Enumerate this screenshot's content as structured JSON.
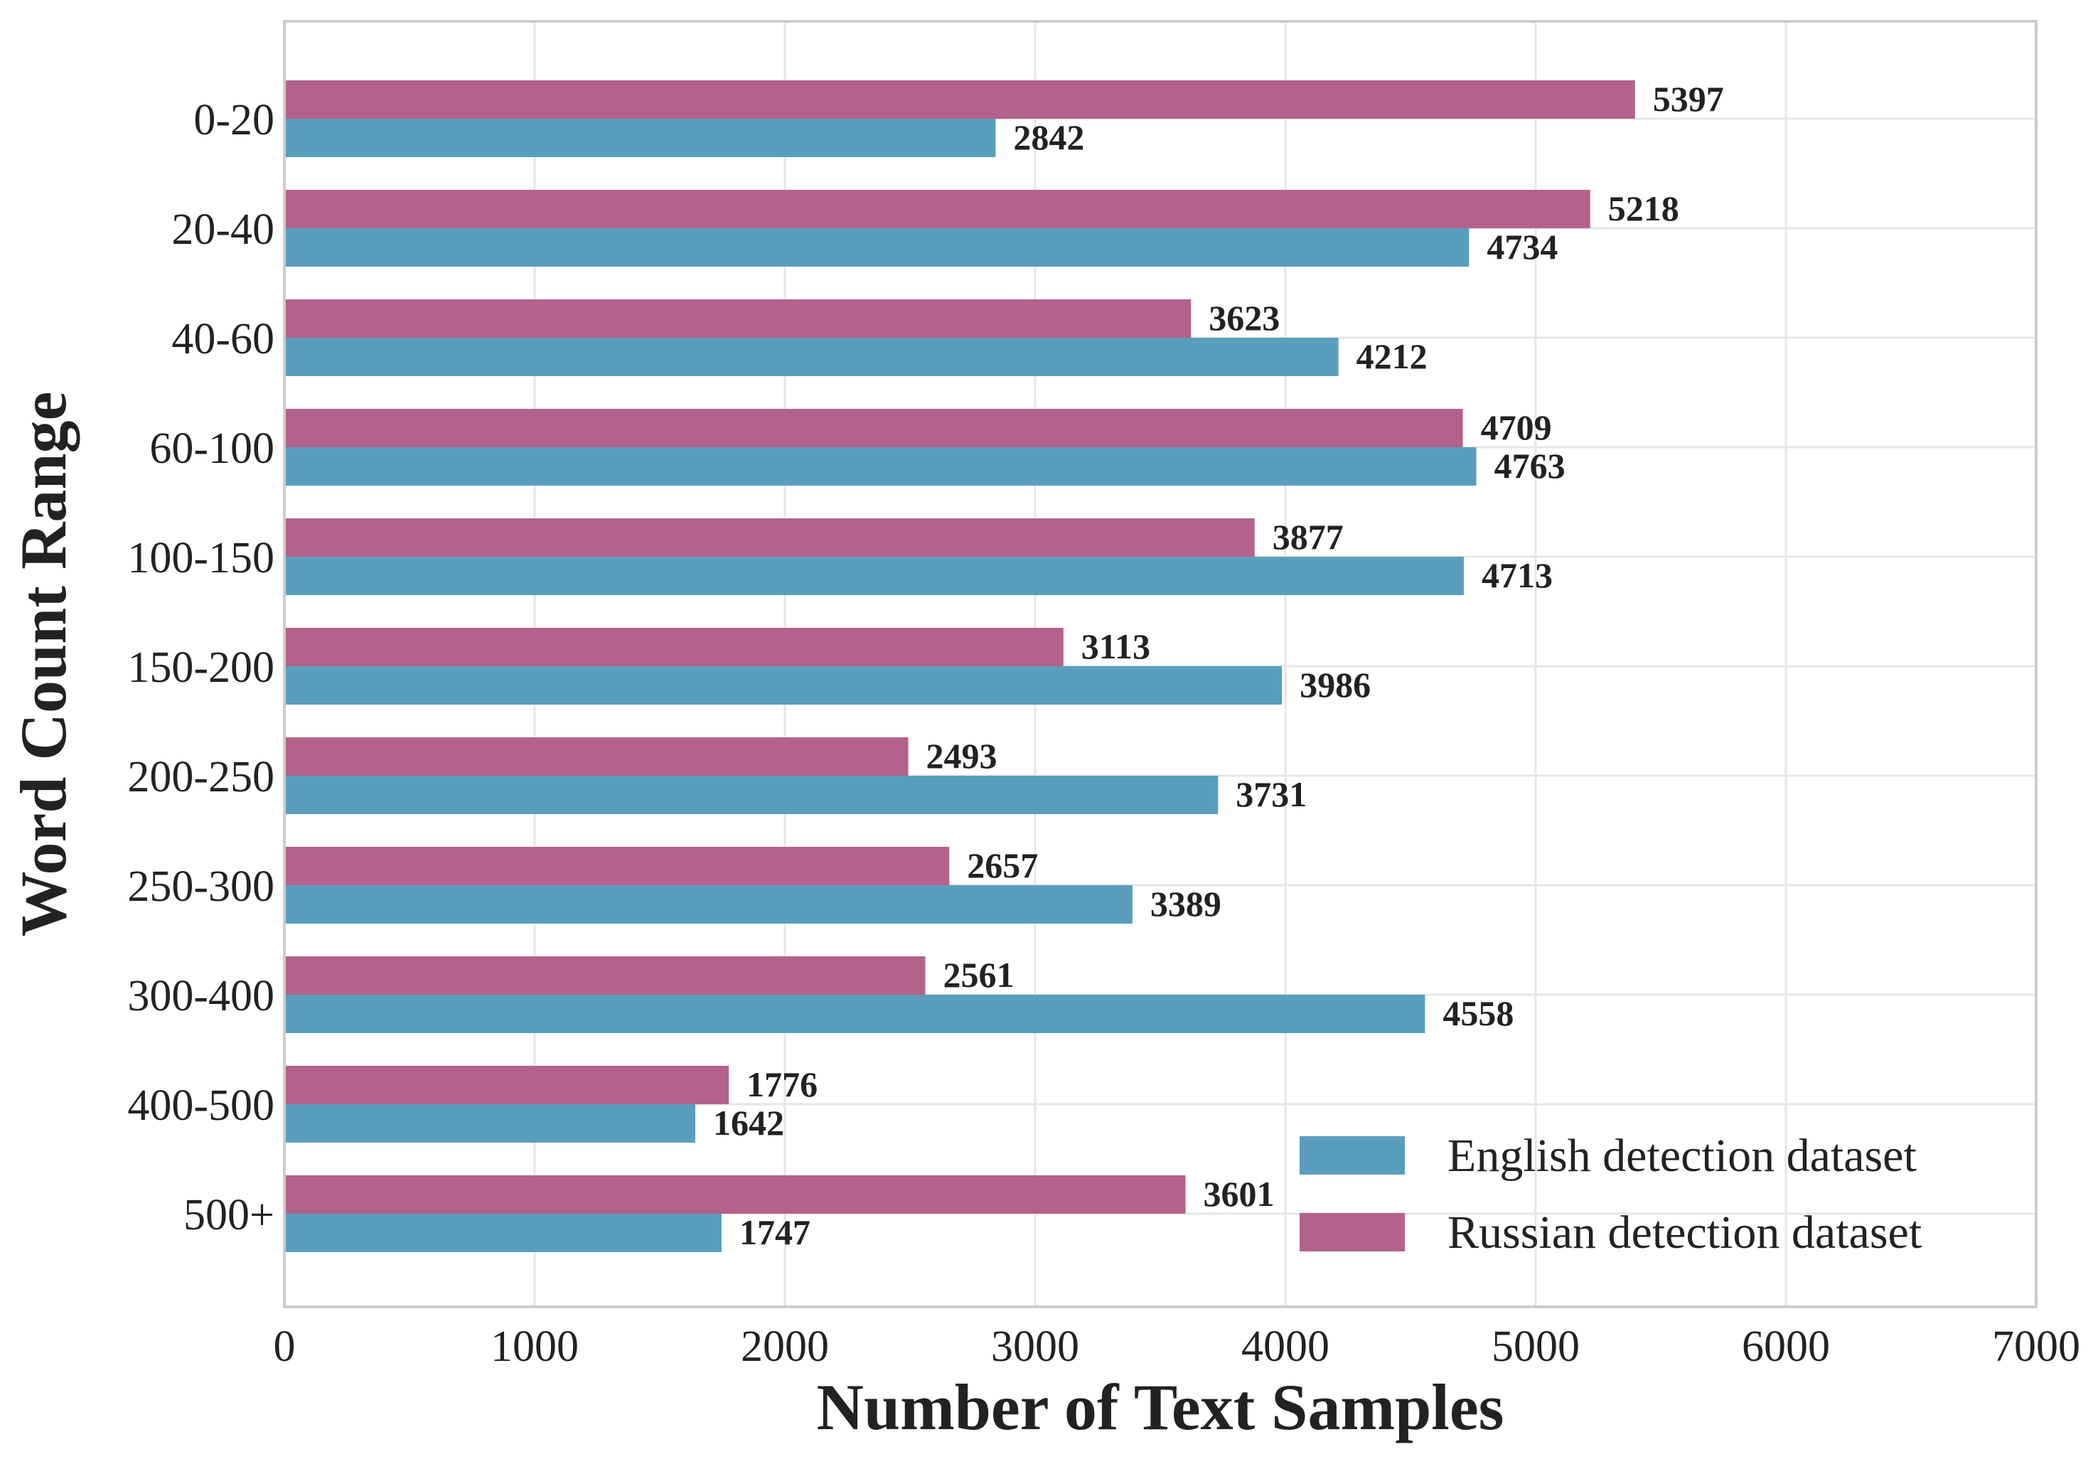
{
  "chart_data": {
    "type": "bar",
    "orientation": "horizontal",
    "categories": [
      "0-20",
      "20-40",
      "40-60",
      "60-100",
      "100-150",
      "150-200",
      "200-250",
      "250-300",
      "300-400",
      "400-500",
      "500+"
    ],
    "series": [
      {
        "name": "English detection dataset",
        "color": "#5a9ebd",
        "values": [
          2842,
          4734,
          4212,
          4763,
          4713,
          3986,
          3731,
          3389,
          4558,
          1642,
          1747
        ]
      },
      {
        "name": "Russian detection dataset",
        "color": "#b3628b",
        "values": [
          5397,
          5218,
          3623,
          4709,
          3877,
          3113,
          2493,
          2657,
          2561,
          1776,
          3601
        ]
      }
    ],
    "xlabel": "Number of Text Samples",
    "ylabel": "Word Count Range",
    "xlim": [
      0,
      7000
    ],
    "xticks": [
      "0",
      "1000",
      "2000",
      "3000",
      "4000",
      "5000",
      "6000",
      "7000"
    ],
    "grid": true,
    "legend_position": "bottom-right",
    "data_labels": true
  }
}
